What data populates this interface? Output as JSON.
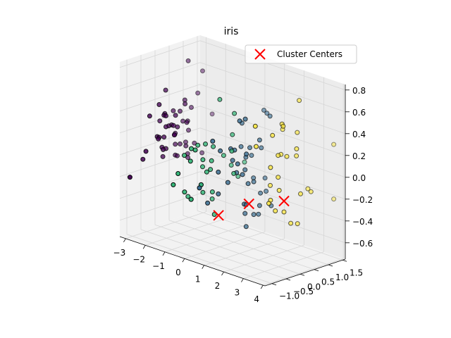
{
  "chart_data": {
    "type": "scatter",
    "projection": "3d",
    "title": "iris",
    "xlabel": "",
    "ylabel": "",
    "zlabel": "",
    "x_ticks": [
      "−3",
      "−2",
      "−1",
      "0",
      "1",
      "2",
      "3",
      "4"
    ],
    "y_ticks": [
      "−1.0",
      "−0.5",
      "0.0",
      "0.5",
      "1.0",
      "1.5"
    ],
    "z_ticks": [
      "−0.6",
      "−0.4",
      "−0.2",
      "0.0",
      "0.2",
      "0.4",
      "0.6",
      "0.8"
    ],
    "xlim": [
      -3.3,
      4.1
    ],
    "ylim": [
      -1.25,
      1.6
    ],
    "zlim": [
      -0.75,
      0.85
    ],
    "grid": true,
    "legend": {
      "position": "upper right",
      "entries": [
        "Cluster Centers"
      ]
    },
    "colors": {
      "cluster_0": "#440154",
      "cluster_1": "#31688e",
      "cluster_2": "#35b779",
      "cluster_3": "#fde725",
      "centers": "#ff0000",
      "edge": "#000000"
    },
    "centers": [
      {
        "x": -0.35,
        "y": 0.2,
        "z": -0.5
      },
      {
        "x": 1.2,
        "y": 0.2,
        "z": -0.3
      },
      {
        "x": 2.7,
        "y": 0.4,
        "z": -0.2
      }
    ],
    "series": [
      {
        "name": "cluster 0",
        "color": "#440154",
        "points": [
          [
            -2.7,
            0.3,
            0.0
          ],
          [
            -2.9,
            -0.2,
            0.1
          ],
          [
            -2.8,
            -0.1,
            0.0
          ],
          [
            -2.7,
            -0.3,
            0.1
          ],
          [
            -2.7,
            0.3,
            -0.1
          ],
          [
            -2.3,
            0.7,
            0.0
          ],
          [
            -2.8,
            0.0,
            0.3
          ],
          [
            -2.6,
            0.2,
            0.1
          ],
          [
            -2.9,
            -0.6,
            0.0
          ],
          [
            -2.7,
            -0.1,
            0.1
          ],
          [
            -2.5,
            0.6,
            -0.1
          ],
          [
            -2.6,
            0.1,
            0.2
          ],
          [
            -2.8,
            -0.2,
            0.1
          ],
          [
            -3.2,
            -0.5,
            -0.1
          ],
          [
            -2.6,
            1.2,
            0.6
          ],
          [
            -2.4,
            1.4,
            0.2
          ],
          [
            -2.6,
            0.8,
            0.3
          ],
          [
            -2.7,
            0.3,
            0.1
          ],
          [
            -2.2,
            0.9,
            -0.1
          ],
          [
            -2.6,
            0.5,
            0.2
          ],
          [
            -2.2,
            0.4,
            -0.1
          ],
          [
            -2.6,
            0.4,
            0.3
          ],
          [
            -3.2,
            0.1,
            0.2
          ],
          [
            -2.3,
            0.1,
            0.2
          ],
          [
            -2.4,
            0.1,
            0.3
          ],
          [
            -2.6,
            -0.1,
            0.0
          ],
          [
            -2.5,
            0.1,
            0.2
          ],
          [
            -2.6,
            0.4,
            0.0
          ],
          [
            -2.6,
            0.3,
            -0.1
          ],
          [
            -2.6,
            -0.1,
            0.3
          ],
          [
            -2.6,
            -0.1,
            0.2
          ],
          [
            -2.3,
            0.4,
            0.0
          ],
          [
            -2.9,
            0.9,
            0.7
          ],
          [
            -2.7,
            1.1,
            0.4
          ],
          [
            -2.7,
            -0.1,
            0.3
          ],
          [
            -2.9,
            0.0,
            -0.1
          ],
          [
            -2.5,
            0.6,
            0.2
          ],
          [
            -2.9,
            0.1,
            0.5
          ],
          [
            -3.0,
            -0.4,
            0.3
          ],
          [
            -2.6,
            0.2,
            0.1
          ],
          [
            -3.0,
            -1.1,
            -0.2
          ],
          [
            -2.4,
            0.5,
            0.2
          ],
          [
            -2.2,
            0.3,
            0.4
          ],
          [
            -2.6,
            -0.2,
            0.0
          ],
          [
            -2.6,
            0.6,
            0.0
          ],
          [
            -2.8,
            -0.2,
            0.4
          ],
          [
            -2.6,
            0.7,
            0.1
          ],
          [
            -2.8,
            0.3,
            0.3
          ],
          [
            -2.5,
            0.5,
            0.4
          ],
          [
            -2.6,
            0.0,
            0.2
          ]
        ]
      },
      {
        "name": "cluster 1",
        "color": "#31688e",
        "points": [
          [
            1.3,
            0.7,
            -0.1
          ],
          [
            0.9,
            0.3,
            0.1
          ],
          [
            1.5,
            0.6,
            -0.2
          ],
          [
            0.2,
            -0.8,
            -0.1
          ],
          [
            1.1,
            0.1,
            -0.3
          ],
          [
            0.6,
            -0.4,
            0.2
          ],
          [
            1.1,
            0.3,
            0.2
          ],
          [
            1.0,
            0.2,
            0.0
          ],
          [
            1.3,
            0.3,
            -0.4
          ],
          [
            0.7,
            -0.1,
            0.2
          ],
          [
            1.3,
            0.1,
            -0.1
          ],
          [
            1.0,
            0.2,
            -0.4
          ],
          [
            0.8,
            0.2,
            0.2
          ],
          [
            1.4,
            0.4,
            -0.4
          ],
          [
            0.5,
            -0.4,
            -0.2
          ],
          [
            1.2,
            0.1,
            -0.3
          ],
          [
            1.3,
            -0.1,
            0.0
          ],
          [
            1.6,
            0.3,
            -0.3
          ],
          [
            0.9,
            -0.1,
            0.2
          ],
          [
            1.5,
            -0.1,
            0.2
          ],
          [
            1.2,
            -0.2,
            0.1
          ],
          [
            1.0,
            -0.1,
            0.0
          ],
          [
            0.7,
            -0.2,
            -0.1
          ],
          [
            0.5,
            -0.6,
            0.3
          ],
          [
            1.4,
            0.7,
            0.5
          ],
          [
            0.9,
            0.5,
            0.1
          ],
          [
            1.3,
            0.3,
            -0.1
          ],
          [
            0.1,
            -0.5,
            -0.3
          ],
          [
            0.5,
            -0.4,
            0.0
          ],
          [
            1.0,
            0.5,
            -0.1
          ],
          [
            1.3,
            -0.2,
            0.5
          ],
          [
            1.6,
            0.3,
            0.3
          ],
          [
            0.4,
            -1.0,
            -0.1
          ],
          [
            1.1,
            0.8,
            0.5
          ],
          [
            1.5,
            0.4,
            -0.2
          ],
          [
            1.9,
            0.5,
            -0.3
          ],
          [
            1.2,
            0.1,
            -0.5
          ],
          [
            0.8,
            -0.1,
            0.1
          ],
          [
            1.3,
            0.0,
            0.5
          ],
          [
            0.7,
            0.3,
            0.4
          ],
          [
            1.4,
            0.5,
            0.2
          ],
          [
            1.7,
            0.6,
            0.5
          ]
        ]
      },
      {
        "name": "cluster 2",
        "color": "#35b779",
        "points": [
          [
            -0.5,
            -1.3,
            -0.1
          ],
          [
            -0.3,
            -0.3,
            0.2
          ],
          [
            -0.1,
            -0.2,
            -0.3
          ],
          [
            0.0,
            -0.6,
            -0.2
          ],
          [
            -0.3,
            -0.4,
            0.0
          ],
          [
            -0.6,
            -0.6,
            -0.3
          ],
          [
            -0.8,
            -0.7,
            0.1
          ],
          [
            -0.4,
            -1.2,
            0.0
          ],
          [
            -0.9,
            -0.5,
            -0.3
          ],
          [
            -0.5,
            -0.9,
            -0.2
          ],
          [
            0.0,
            -0.6,
            0.1
          ],
          [
            -0.4,
            -0.5,
            0.2
          ],
          [
            -0.1,
            -0.8,
            0.2
          ],
          [
            0.3,
            -0.5,
            0.1
          ],
          [
            0.2,
            -0.8,
            -0.1
          ],
          [
            -0.2,
            -0.9,
            0.1
          ],
          [
            0.0,
            0.0,
            0.6
          ],
          [
            -0.6,
            -0.6,
            -0.3
          ],
          [
            0.2,
            -0.4,
            -0.2
          ],
          [
            0.4,
            0.6,
            0.0
          ],
          [
            0.9,
            -0.2,
            0.2
          ],
          [
            1.0,
            -0.2,
            0.0
          ],
          [
            0.5,
            0.1,
            0.3
          ],
          [
            0.2,
            0.0,
            0.1
          ],
          [
            0.1,
            -0.3,
            0.2
          ],
          [
            0.3,
            -0.4,
            -0.4
          ],
          [
            0.3,
            0.2,
            0.0
          ],
          [
            0.6,
            0.1,
            0.5
          ],
          [
            0.2,
            -0.6,
            0.0
          ],
          [
            -0.3,
            -0.8,
            0.2
          ],
          [
            0.1,
            -0.4,
            0.0
          ],
          [
            0.5,
            0.3,
            -0.1
          ]
        ]
      },
      {
        "name": "cluster 3",
        "color": "#fde725",
        "points": [
          [
            2.5,
            0.0,
            -0.2
          ],
          [
            2.6,
            0.3,
            -0.1
          ],
          [
            3.4,
            0.5,
            -0.1
          ],
          [
            2.0,
            0.4,
            -0.1
          ],
          [
            3.8,
            1.4,
            0.3
          ],
          [
            3.2,
            0.9,
            -0.1
          ],
          [
            2.9,
            0.5,
            -0.4
          ],
          [
            3.8,
            1.4,
            -0.2
          ],
          [
            2.4,
            0.2,
            0.4
          ],
          [
            2.9,
            0.7,
            0.2
          ],
          [
            2.9,
            0.8,
            0.7
          ],
          [
            3.5,
            0.8,
            -0.1
          ],
          [
            2.1,
            -0.2,
            0.5
          ],
          [
            3.2,
            0.5,
            0.3
          ],
          [
            2.4,
            0.3,
            -0.3
          ],
          [
            3.1,
            0.6,
            -0.4
          ],
          [
            2.7,
            0.5,
            0.2
          ],
          [
            2.8,
            0.3,
            0.5
          ],
          [
            2.4,
            0.4,
            0.0
          ],
          [
            2.4,
            0.5,
            0.2
          ],
          [
            2.3,
            0.2,
            0.1
          ],
          [
            2.6,
            0.4,
            0.5
          ],
          [
            2.0,
            -0.1,
            0.3
          ],
          [
            2.2,
            0.7,
            0.4
          ],
          [
            2.4,
            0.4,
            0.2
          ],
          [
            2.8,
            0.8,
            0.4
          ],
          [
            2.3,
            0.2,
            -0.2
          ],
          [
            2.7,
            0.4,
            -0.3
          ]
        ]
      }
    ]
  }
}
